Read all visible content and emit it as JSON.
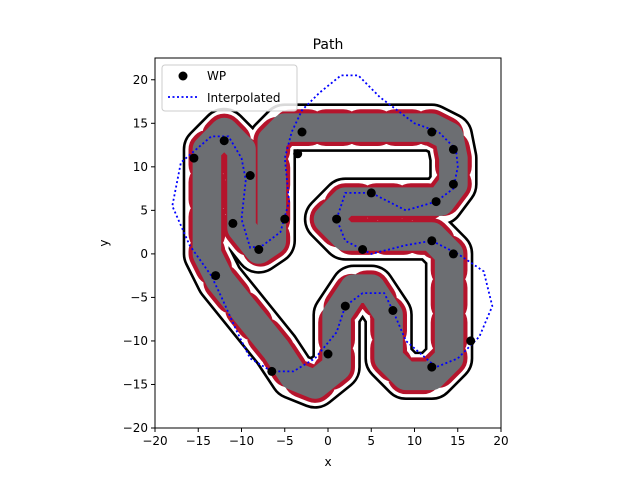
{
  "chart_data": {
    "type": "scatter",
    "title": "Path",
    "xlabel": "x",
    "ylabel": "y",
    "xlim": [
      -20,
      20
    ],
    "ylim": [
      -20,
      22.5
    ],
    "xticks": [
      -20,
      -15,
      -10,
      -5,
      0,
      5,
      10,
      15,
      20
    ],
    "yticks": [
      -20,
      -15,
      -10,
      -5,
      0,
      5,
      10,
      15,
      20
    ],
    "grid": false,
    "legend": "top-left",
    "colors": {
      "track": "#6c6e72",
      "curb_red": "#b5142c",
      "curb_white": "#ffffff",
      "edge": "#000000",
      "waypoint": "#000000",
      "interpolated": "#0000ff"
    },
    "track_centerline": [
      [
        -6,
        -11
      ],
      [
        -12.5,
        -3
      ],
      [
        -14,
        0
      ],
      [
        -14,
        12
      ],
      [
        -12,
        14
      ],
      [
        -10,
        12
      ],
      [
        -10,
        3
      ],
      [
        -8,
        0.5
      ],
      [
        -6.5,
        1.5
      ],
      [
        -6.5,
        13
      ],
      [
        -5,
        14.5
      ],
      [
        12,
        14.5
      ],
      [
        14,
        13.5
      ],
      [
        14.5,
        11
      ],
      [
        14.5,
        8
      ],
      [
        13,
        6
      ],
      [
        2,
        6
      ],
      [
        0,
        4
      ],
      [
        2,
        2
      ],
      [
        12,
        2
      ],
      [
        14,
        0
      ],
      [
        14,
        -12
      ],
      [
        12,
        -14
      ],
      [
        9,
        -14
      ],
      [
        7,
        -12
      ],
      [
        7,
        -7
      ],
      [
        5,
        -4
      ],
      [
        3,
        -4
      ],
      [
        1,
        -7
      ],
      [
        1,
        -13
      ],
      [
        -1.5,
        -15
      ],
      [
        -4,
        -14
      ],
      [
        -6,
        -11
      ]
    ],
    "series": [
      {
        "name": "WP",
        "marker": "circle",
        "x": [
          -15.5,
          -12,
          -9,
          -11,
          -8,
          -5,
          -3,
          -3.5,
          12,
          14.5,
          14.5,
          12.5,
          5,
          1,
          4,
          12,
          14.5,
          16.5,
          12,
          7.5,
          2,
          0,
          -6.5,
          -13
        ],
        "y": [
          11,
          13,
          9,
          3.5,
          0.5,
          4,
          14,
          11.5,
          14,
          12,
          8,
          6,
          7,
          4,
          0.5,
          1.5,
          0,
          -10,
          -13,
          -6.5,
          -6,
          -11.5,
          -13.5,
          -2.5
        ]
      },
      {
        "name": "Interpolated",
        "style": "dotted",
        "x": [
          -13.5,
          -16,
          -18,
          -17,
          -13.5,
          -11.5,
          -10,
          -9.5,
          -10,
          -9,
          -7.5,
          -5.5,
          -4.5,
          -5,
          -4.2,
          -3,
          -1,
          1.5,
          3.5,
          6,
          10,
          12.8,
          14.8,
          15,
          14.5,
          12.5,
          9,
          5,
          2,
          1,
          2,
          5,
          9,
          12,
          15,
          18,
          19,
          17.5,
          15,
          12.5,
          9,
          7.5,
          6.5,
          4,
          2,
          1,
          -1.5,
          -4,
          -6.5,
          -9,
          -10.5,
          -12.3,
          -13.5
        ],
        "y": [
          -2.5,
          1,
          5.5,
          10.5,
          13.5,
          13.5,
          11,
          8.5,
          4,
          0.7,
          1,
          2.5,
          6,
          11,
          14,
          16.5,
          18.5,
          20.5,
          20.5,
          18,
          15,
          14,
          12,
          10,
          7.5,
          6,
          5,
          7,
          7,
          4,
          1.5,
          0,
          1,
          1.5,
          0,
          -2,
          -6,
          -9.5,
          -12,
          -13,
          -10,
          -6.5,
          -4.5,
          -4.5,
          -6,
          -9,
          -12,
          -13.5,
          -13.5,
          -12,
          -9,
          -5,
          -2.5
        ]
      }
    ]
  }
}
